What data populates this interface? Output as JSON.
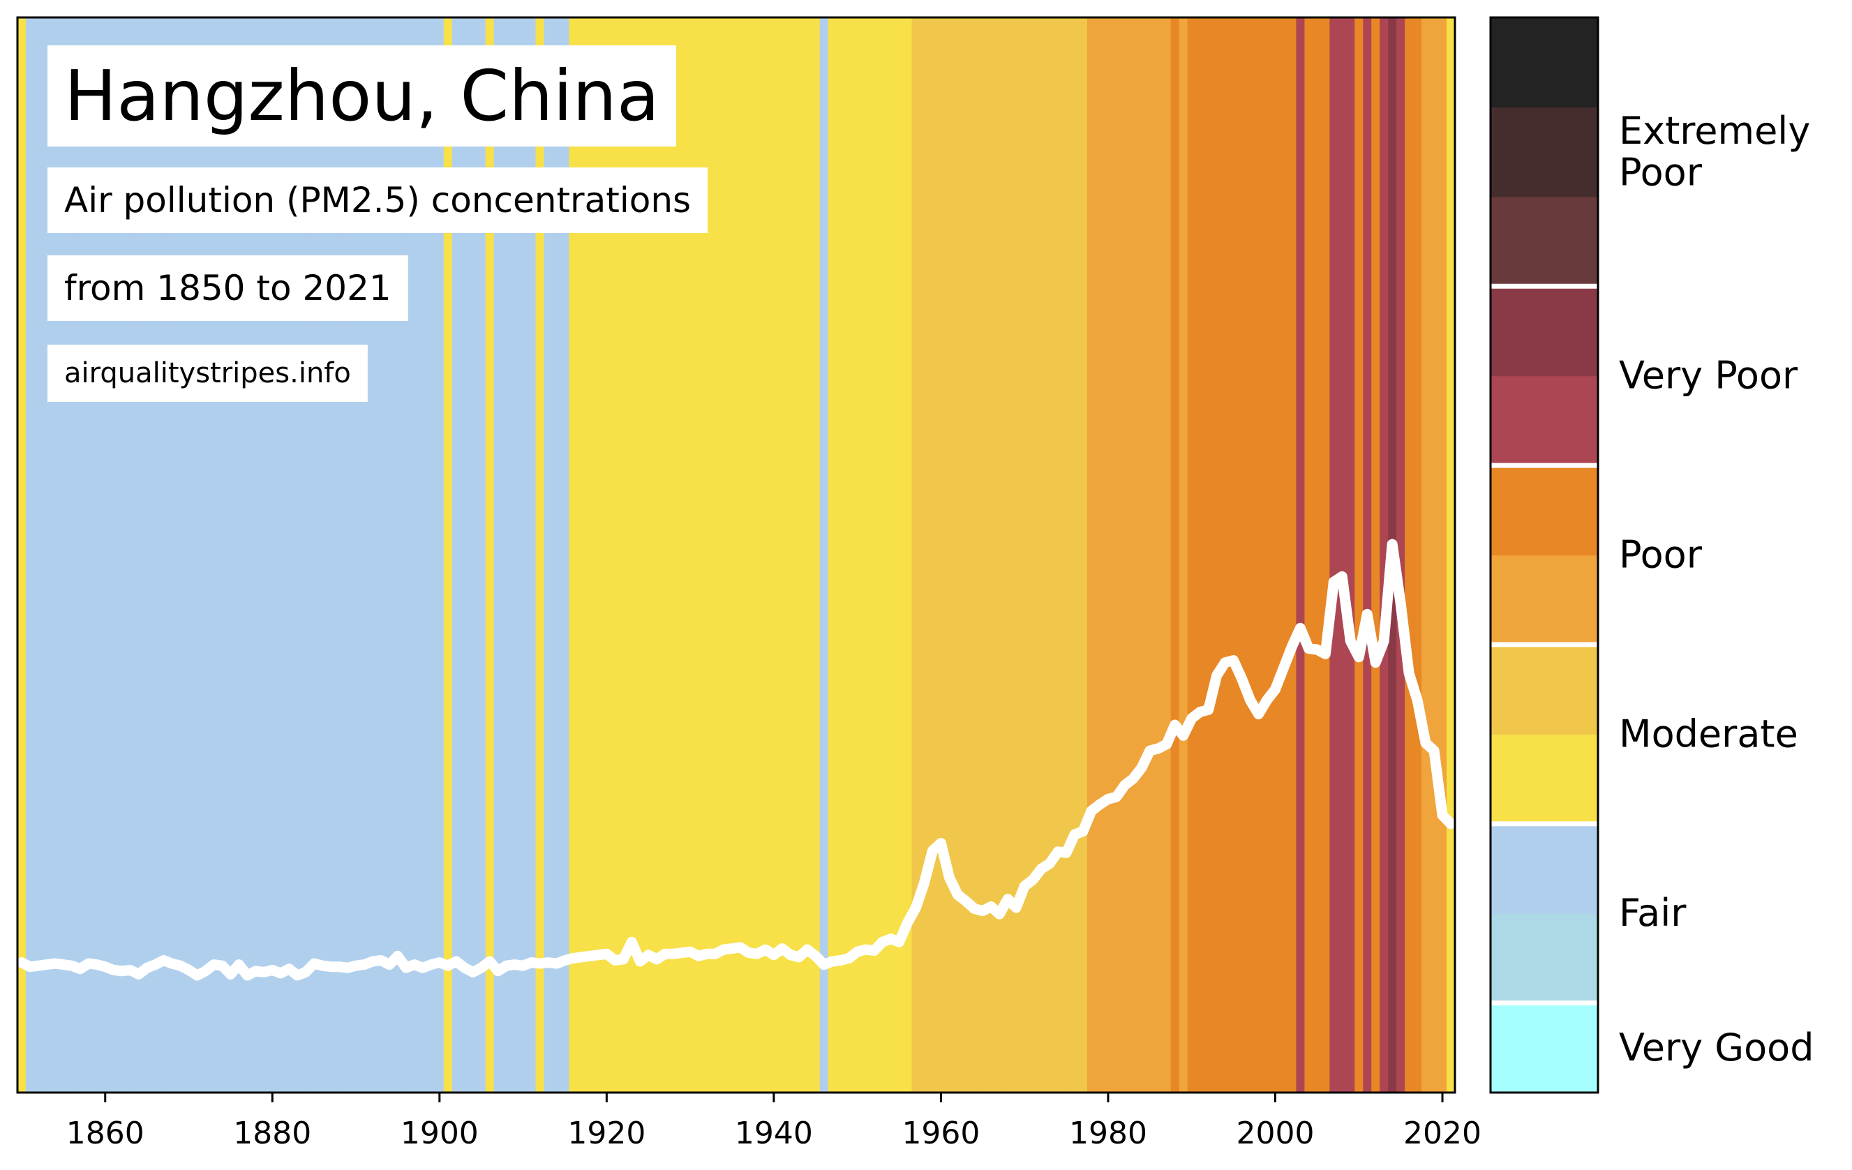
{
  "chart_data": {
    "type": "stripes",
    "title": "Hangzhou, China",
    "subtitle": "Air pollution (PM2.5) concentrations",
    "period": "from 1850 to 2021",
    "source": "airqualitystripes.info",
    "x": [
      1850,
      1851,
      1852,
      1853,
      1854,
      1855,
      1856,
      1857,
      1858,
      1859,
      1860,
      1861,
      1862,
      1863,
      1864,
      1865,
      1866,
      1867,
      1868,
      1869,
      1870,
      1871,
      1872,
      1873,
      1874,
      1875,
      1876,
      1877,
      1878,
      1879,
      1880,
      1881,
      1882,
      1883,
      1884,
      1885,
      1886,
      1887,
      1888,
      1889,
      1890,
      1891,
      1892,
      1893,
      1894,
      1895,
      1896,
      1897,
      1898,
      1899,
      1900,
      1901,
      1902,
      1903,
      1904,
      1905,
      1906,
      1907,
      1908,
      1909,
      1910,
      1911,
      1912,
      1913,
      1914,
      1915,
      1916,
      1917,
      1918,
      1919,
      1920,
      1921,
      1922,
      1923,
      1924,
      1925,
      1926,
      1927,
      1928,
      1929,
      1930,
      1931,
      1932,
      1933,
      1934,
      1935,
      1936,
      1937,
      1938,
      1939,
      1940,
      1941,
      1942,
      1943,
      1944,
      1945,
      1946,
      1947,
      1948,
      1949,
      1950,
      1951,
      1952,
      1953,
      1954,
      1955,
      1956,
      1957,
      1958,
      1959,
      1960,
      1961,
      1962,
      1963,
      1964,
      1965,
      1966,
      1967,
      1968,
      1969,
      1970,
      1971,
      1972,
      1973,
      1974,
      1975,
      1976,
      1977,
      1978,
      1979,
      1980,
      1981,
      1982,
      1983,
      1984,
      1985,
      1986,
      1987,
      1988,
      1989,
      1990,
      1991,
      1992,
      1993,
      1994,
      1995,
      1996,
      1997,
      1998,
      1999,
      2000,
      2001,
      2002,
      2003,
      2004,
      2005,
      2006,
      2007,
      2008,
      2009,
      2010,
      2011,
      2012,
      2013,
      2014,
      2015,
      2016,
      2017,
      2018,
      2019,
      2020,
      2021
    ],
    "values": [
      12.1,
      11.7,
      11.8,
      11.9,
      12.0,
      11.9,
      11.8,
      11.5,
      12.0,
      11.9,
      11.7,
      11.4,
      11.3,
      11.4,
      11.0,
      11.6,
      11.9,
      12.3,
      12.0,
      11.8,
      11.4,
      10.9,
      11.3,
      11.9,
      11.8,
      11.0,
      11.9,
      10.9,
      11.3,
      11.2,
      11.4,
      11.1,
      11.5,
      10.9,
      11.2,
      12.0,
      11.8,
      11.7,
      11.7,
      11.6,
      11.8,
      11.9,
      12.2,
      12.3,
      11.9,
      12.7,
      11.6,
      11.9,
      11.6,
      11.9,
      12.1,
      11.8,
      12.2,
      11.6,
      11.2,
      11.6,
      12.2,
      11.3,
      11.8,
      11.9,
      11.8,
      12.1,
      12.0,
      12.1,
      12.0,
      12.3,
      12.5,
      12.6,
      12.7,
      12.8,
      12.9,
      12.3,
      12.4,
      14.0,
      12.2,
      12.8,
      12.4,
      12.9,
      12.9,
      13.0,
      13.1,
      12.7,
      12.9,
      12.9,
      13.3,
      13.4,
      13.5,
      13.0,
      12.9,
      13.3,
      12.8,
      13.4,
      12.8,
      12.6,
      13.3,
      12.7,
      11.9,
      12.2,
      12.3,
      12.5,
      13.1,
      13.3,
      13.2,
      14.0,
      14.3,
      14.0,
      15.8,
      17.2,
      19.5,
      22.5,
      23.2,
      20.0,
      18.4,
      17.8,
      17.1,
      16.9,
      17.3,
      16.6,
      18.0,
      17.2,
      19.2,
      19.8,
      20.8,
      21.3,
      22.4,
      22.3,
      24.0,
      24.3,
      26.2,
      26.8,
      27.3,
      27.5,
      28.6,
      29.2,
      30.2,
      31.8,
      32.0,
      32.4,
      34.2,
      33.2,
      34.8,
      35.4,
      35.6,
      38.8,
      40.0,
      40.2,
      38.5,
      36.5,
      35.2,
      36.5,
      37.5,
      39.5,
      41.5,
      43.2,
      41.3,
      41.2,
      40.8,
      47.5,
      48.0,
      42.0,
      40.5,
      44.5,
      40.0,
      42.0,
      51.0,
      45.5,
      39.0,
      36.5,
      32.5,
      31.8,
      25.8,
      25.0
    ],
    "stripe_colors": [
      "#f7e048",
      "#b0cfec",
      "#b0cfec",
      "#b0cfec",
      "#b0cfec",
      "#b0cfec",
      "#b0cfec",
      "#b0cfec",
      "#b0cfec",
      "#b0cfec",
      "#b0cfec",
      "#b0cfec",
      "#b0cfec",
      "#b0cfec",
      "#b0cfec",
      "#b0cfec",
      "#b0cfec",
      "#b0cfec",
      "#b0cfec",
      "#b0cfec",
      "#b0cfec",
      "#b0cfec",
      "#b0cfec",
      "#b0cfec",
      "#b0cfec",
      "#b0cfec",
      "#b0cfec",
      "#b0cfec",
      "#b0cfec",
      "#b0cfec",
      "#b0cfec",
      "#b0cfec",
      "#b0cfec",
      "#b0cfec",
      "#b0cfec",
      "#b0cfec",
      "#b0cfec",
      "#b0cfec",
      "#b0cfec",
      "#b0cfec",
      "#b0cfec",
      "#b0cfec",
      "#b0cfec",
      "#b0cfec",
      "#b0cfec",
      "#b0cfec",
      "#b0cfec",
      "#b0cfec",
      "#b0cfec",
      "#b0cfec",
      "#b0cfec",
      "#f7e048",
      "#b0cfec",
      "#b0cfec",
      "#b0cfec",
      "#b0cfec",
      "#f7e048",
      "#b0cfec",
      "#b0cfec",
      "#b0cfec",
      "#b0cfec",
      "#b0cfec",
      "#f7e048",
      "#b0cfec",
      "#b0cfec",
      "#b0cfec",
      "#f7e048",
      "#f7e048",
      "#f7e048",
      "#f7e048",
      "#f7e048",
      "#f7e048",
      "#f7e048",
      "#f7e048",
      "#f7e048",
      "#f7e048",
      "#f7e048",
      "#f7e048",
      "#f7e048",
      "#f7e048",
      "#f7e048",
      "#f7e048",
      "#f7e048",
      "#f7e048",
      "#f7e048",
      "#f7e048",
      "#f7e048",
      "#f7e048",
      "#f7e048",
      "#f7e048",
      "#f7e048",
      "#f7e048",
      "#f7e048",
      "#f7e048",
      "#f7e048",
      "#f7e048",
      "#b0cfec",
      "#f7e048",
      "#f7e048",
      "#f7e048",
      "#f7e048",
      "#f7e048",
      "#f7e048",
      "#f7e048",
      "#f7e048",
      "#f7e048",
      "#f7e048",
      "#f0c74a",
      "#f0c74a",
      "#f0c74a",
      "#f0c74a",
      "#f0c74a",
      "#f0c74a",
      "#f0c74a",
      "#f0c74a",
      "#f0c74a",
      "#f0c74a",
      "#f0c74a",
      "#f0c74a",
      "#f0c74a",
      "#f0c74a",
      "#f0c74a",
      "#f0c74a",
      "#f0c74a",
      "#f0c74a",
      "#f0c74a",
      "#f0c74a",
      "#f0c74a",
      "#f0a43c",
      "#f0a43c",
      "#f0a43c",
      "#f0a43c",
      "#f0a43c",
      "#f0a43c",
      "#f0a43c",
      "#f0a43c",
      "#f0a43c",
      "#f0a43c",
      "#e88725",
      "#f0a43c",
      "#e88725",
      "#e88725",
      "#e88725",
      "#e88725",
      "#e88725",
      "#e88725",
      "#e88725",
      "#e88725",
      "#e88725",
      "#e88725",
      "#e88725",
      "#e88725",
      "#e88725",
      "#ad4653",
      "#e88725",
      "#e88725",
      "#e88725",
      "#ad4653",
      "#ad4653",
      "#ad4653",
      "#e88725",
      "#ad4653",
      "#e88725",
      "#ad4653",
      "#8a3a47",
      "#ad4653",
      "#e88725",
      "#e88725",
      "#f0a43c",
      "#f0a43c",
      "#f0a43c",
      "#f7e048"
    ],
    "line_color": "#ffffff",
    "xlim": [
      1849.5,
      2021.5
    ],
    "ylim": [
      0,
      100
    ],
    "xticks": [
      1860,
      1880,
      1900,
      1920,
      1940,
      1960,
      1980,
      2000,
      2020
    ],
    "colorbar": [
      {
        "label": "Very Good",
        "colors": [
          "#a6ffff"
        ]
      },
      {
        "label": "Fair",
        "colors": [
          "#add8e6",
          "#b0cfec"
        ]
      },
      {
        "label": "Moderate",
        "colors": [
          "#f7e048",
          "#f0c74a"
        ]
      },
      {
        "label": "Poor",
        "colors": [
          "#f0a43c",
          "#e88725"
        ]
      },
      {
        "label": "Very Poor",
        "colors": [
          "#ad4653",
          "#8a3a47"
        ]
      },
      {
        "label": "Extremely\nPoor",
        "colors": [
          "#693a3b",
          "#452d2e",
          "#232323"
        ]
      }
    ]
  }
}
